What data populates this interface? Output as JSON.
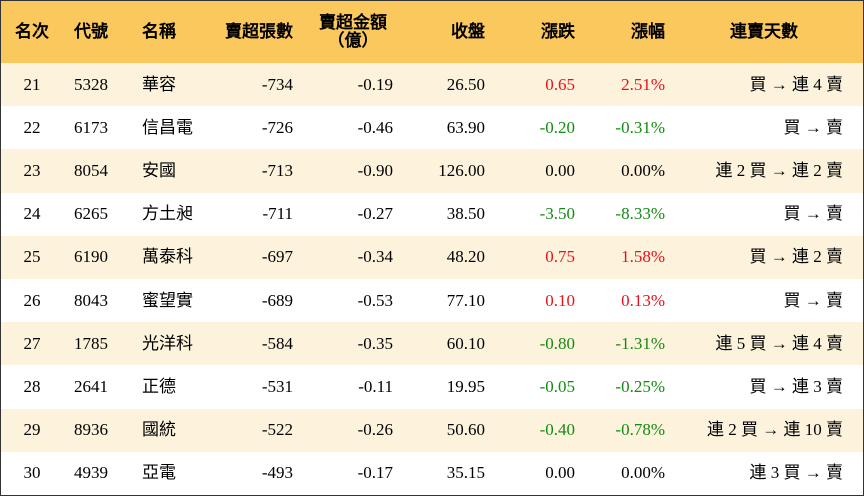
{
  "table": {
    "header": [
      "名次",
      "代號",
      "名稱",
      "賣超張數",
      "賣超金額\n（億）",
      "收盤",
      "漲跌",
      "漲幅",
      "連賣天數"
    ],
    "rows": [
      [
        "21",
        "5328",
        "華容",
        "-734",
        "-0.19",
        "26.50",
        "0.65",
        "2.51%",
        "買 → 連 4 賣"
      ],
      [
        "22",
        "6173",
        "信昌電",
        "-726",
        "-0.46",
        "63.90",
        "-0.20",
        "-0.31%",
        "買 → 賣"
      ],
      [
        "23",
        "8054",
        "安國",
        "-713",
        "-0.90",
        "126.00",
        "0.00",
        "0.00%",
        "連 2 買 → 連 2 賣"
      ],
      [
        "24",
        "6265",
        "方土昶",
        "-711",
        "-0.27",
        "38.50",
        "-3.50",
        "-8.33%",
        "買 → 賣"
      ],
      [
        "25",
        "6190",
        "萬泰科",
        "-697",
        "-0.34",
        "48.20",
        "0.75",
        "1.58%",
        "買 → 連 2 賣"
      ],
      [
        "26",
        "8043",
        "蜜望實",
        "-689",
        "-0.53",
        "77.10",
        "0.10",
        "0.13%",
        "買 → 賣"
      ],
      [
        "27",
        "1785",
        "光洋科",
        "-584",
        "-0.35",
        "60.10",
        "-0.80",
        "-1.31%",
        "連 5 買 → 連 4 賣"
      ],
      [
        "28",
        "2641",
        "正德",
        "-531",
        "-0.11",
        "19.95",
        "-0.05",
        "-0.25%",
        "買 → 連 3 賣"
      ],
      [
        "29",
        "8936",
        "國統",
        "-522",
        "-0.26",
        "50.60",
        "-0.40",
        "-0.78%",
        "連 2 買 → 連 10 賣"
      ],
      [
        "30",
        "4939",
        "亞電",
        "-493",
        "-0.17",
        "35.15",
        "0.00",
        "0.00%",
        "連 3 買 → 賣"
      ]
    ]
  }
}
